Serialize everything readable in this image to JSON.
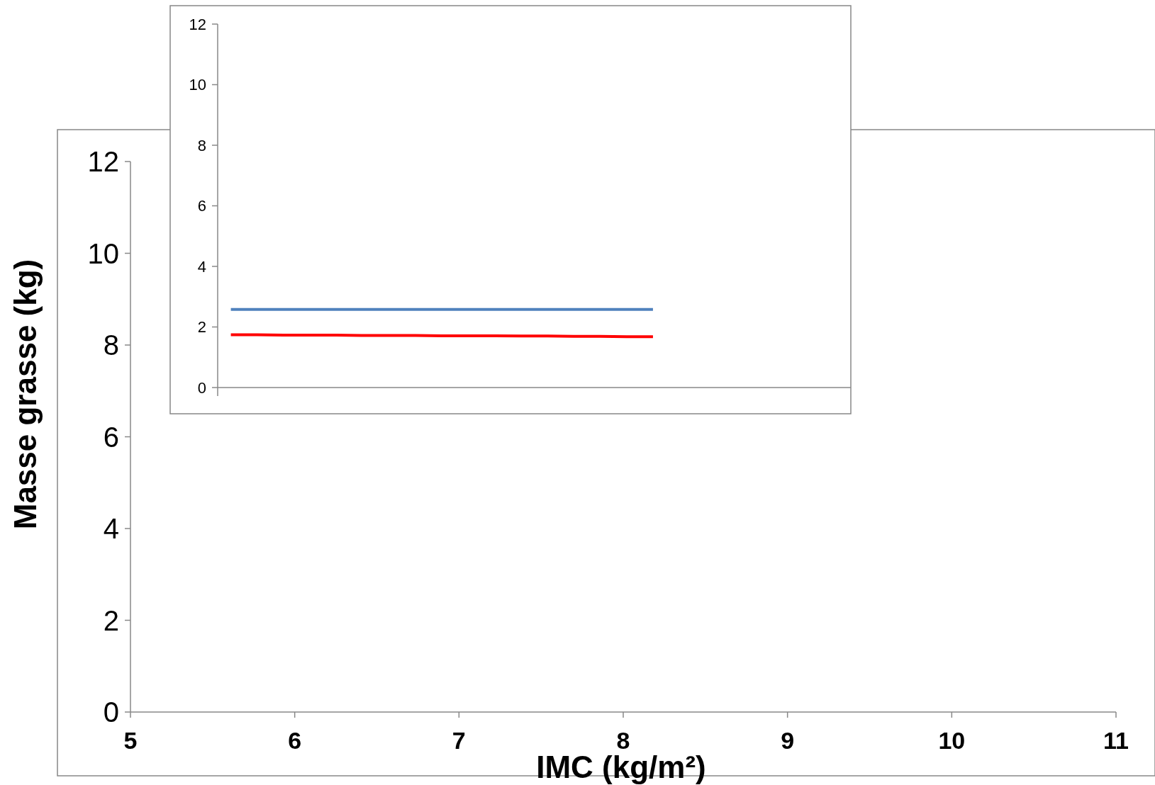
{
  "chart_data": [
    {
      "type": "scatter",
      "xlabel": "IMC (kg/m²)",
      "ylabel": "Masse grasse (kg)",
      "xlim": [
        5,
        11
      ],
      "xticks": [
        5,
        6,
        7,
        8,
        9,
        10,
        11
      ],
      "ylim": [
        0,
        12
      ],
      "yticks": [
        0,
        2,
        4,
        6,
        8,
        10,
        12
      ],
      "grid": false
    },
    {
      "type": "line",
      "categories": [
        null,
        null,
        null,
        null,
        null,
        null,
        null,
        null,
        null,
        null,
        null,
        null,
        null,
        null,
        null,
        null,
        null,
        null,
        null,
        null,
        null,
        null,
        null,
        null
      ],
      "ylim": [
        0,
        12
      ],
      "yticks": [
        0,
        2,
        4,
        6,
        8,
        10,
        12
      ],
      "tick_labels": "y",
      "grid": false,
      "series": [
        {
          "color": "#4f81bd",
          "values": [
            2.58,
            2.58,
            2.58,
            2.58,
            2.58,
            2.58,
            2.58,
            2.58,
            2.58,
            2.58,
            2.58,
            2.58,
            2.58,
            2.58,
            2.58,
            2.58,
            2.58,
            null,
            null,
            null,
            null,
            null,
            null,
            null
          ]
        },
        {
          "color": "#ff0000",
          "values": [
            1.74,
            1.74,
            1.73,
            1.73,
            1.73,
            1.72,
            1.72,
            1.72,
            1.71,
            1.71,
            1.71,
            1.7,
            1.7,
            1.69,
            1.69,
            1.68,
            1.68,
            null,
            null,
            null,
            null,
            null,
            null,
            null
          ]
        }
      ]
    }
  ]
}
